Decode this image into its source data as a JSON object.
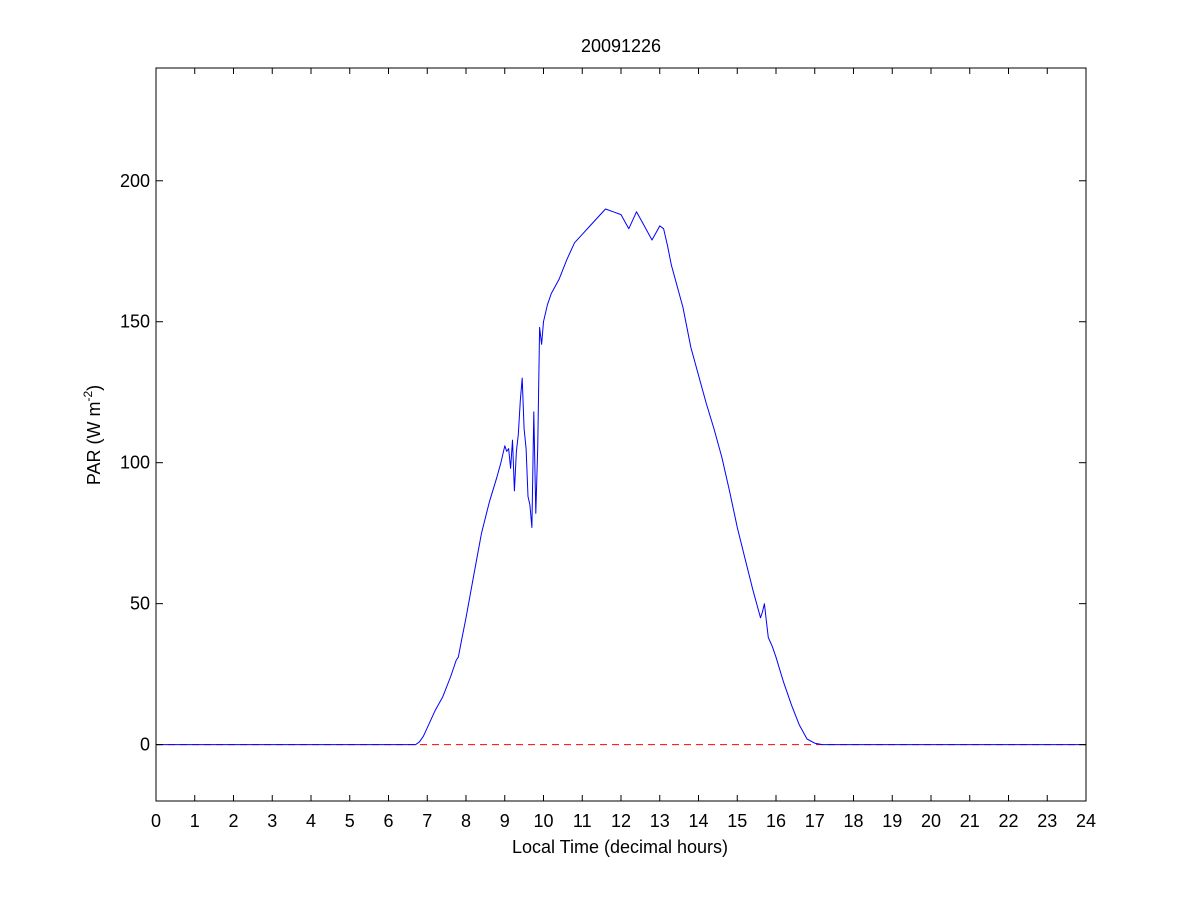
{
  "chart_data": {
    "type": "line",
    "title": "20091226",
    "xlabel": "Local Time (decimal hours)",
    "ylabel": {
      "prefix": "PAR (W m",
      "superscript": "-2",
      "suffix": ")"
    },
    "xlim": [
      0,
      24
    ],
    "ylim": [
      -20,
      240
    ],
    "x_ticks": [
      0,
      1,
      2,
      3,
      4,
      5,
      6,
      7,
      8,
      9,
      10,
      11,
      12,
      13,
      14,
      15,
      16,
      17,
      18,
      19,
      20,
      21,
      22,
      23,
      24
    ],
    "y_ticks": [
      0,
      50,
      100,
      150,
      200
    ],
    "grid": false,
    "legend": "none",
    "reference_line": {
      "y": 0,
      "style": "dashed",
      "color": "#ff0000"
    },
    "series": [
      {
        "color": "#0000ff",
        "x": [
          0,
          1,
          2,
          3,
          4,
          5,
          6,
          6.7,
          6.8,
          6.9,
          7.0,
          7.2,
          7.4,
          7.6,
          7.75,
          7.8,
          7.9,
          8.0,
          8.2,
          8.4,
          8.6,
          8.8,
          8.9,
          9.0,
          9.05,
          9.1,
          9.15,
          9.2,
          9.25,
          9.3,
          9.35,
          9.4,
          9.45,
          9.5,
          9.55,
          9.6,
          9.65,
          9.7,
          9.75,
          9.8,
          9.85,
          9.9,
          9.95,
          10.0,
          10.1,
          10.2,
          10.4,
          10.6,
          10.8,
          11.0,
          11.2,
          11.4,
          11.6,
          11.8,
          12.0,
          12.2,
          12.4,
          12.6,
          12.8,
          13.0,
          13.1,
          13.2,
          13.3,
          13.4,
          13.6,
          13.8,
          14.0,
          14.2,
          14.4,
          14.6,
          14.8,
          15.0,
          15.2,
          15.4,
          15.6,
          15.65,
          15.7,
          15.75,
          15.8,
          15.9,
          16.0,
          16.2,
          16.4,
          16.6,
          16.8,
          17.0,
          17.2,
          17.4,
          18,
          19,
          20,
          21,
          22,
          23,
          24
        ],
        "y": [
          0,
          0,
          0,
          0,
          0,
          0,
          0,
          0,
          1,
          3,
          6,
          12,
          17,
          24,
          30,
          31,
          38,
          45,
          60,
          75,
          86,
          95,
          100,
          106,
          104,
          105,
          98,
          108,
          90,
          104,
          110,
          122,
          130,
          112,
          105,
          88,
          85,
          77,
          118,
          82,
          105,
          148,
          142,
          150,
          156,
          160,
          165,
          172,
          178,
          181,
          184,
          187,
          190,
          189,
          188,
          183,
          189,
          184,
          179,
          184,
          183,
          177,
          170,
          165,
          155,
          141,
          131,
          121,
          112,
          102,
          90,
          77,
          66,
          55,
          45,
          47,
          50,
          44,
          38,
          35,
          31,
          22,
          14,
          7,
          2,
          0.5,
          0,
          0,
          0,
          0,
          0,
          0,
          0,
          0,
          0
        ]
      }
    ]
  }
}
